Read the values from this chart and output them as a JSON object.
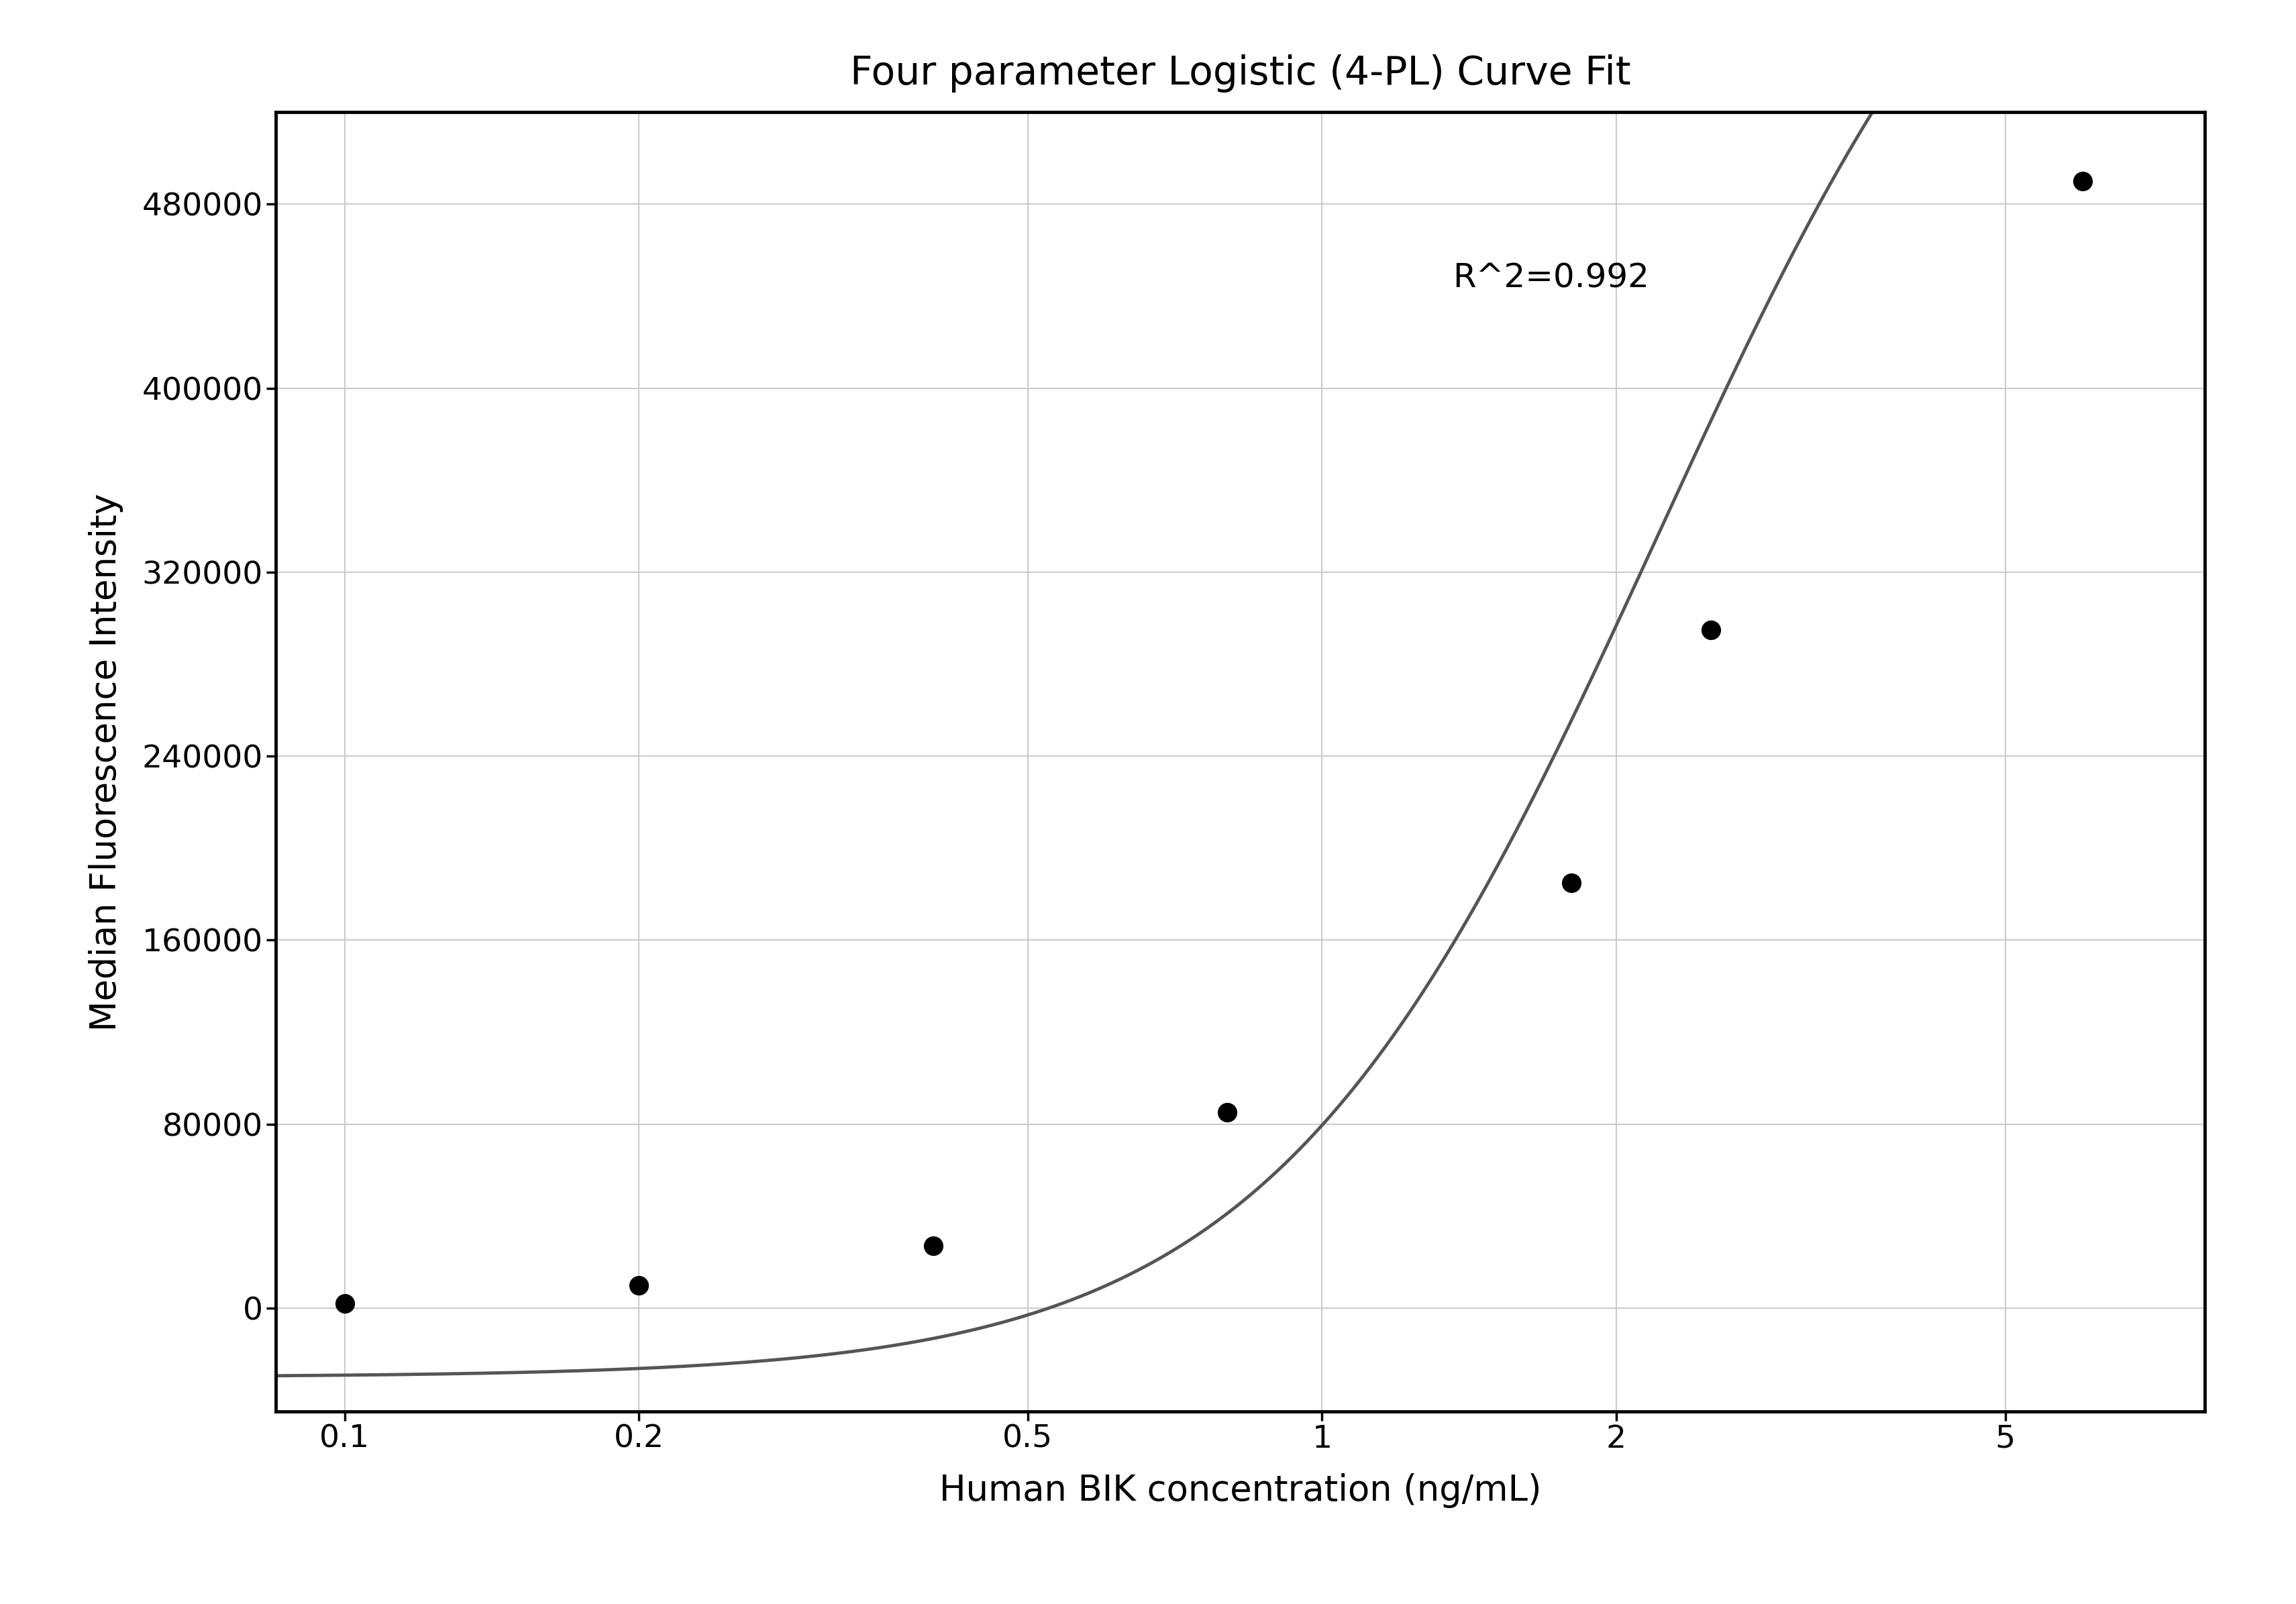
{
  "title": "Four parameter Logistic (4-PL) Curve Fit",
  "xlabel": "Human BIK concentration (ng/mL)",
  "ylabel": "Median Fluorescence Intensity",
  "r_squared": "R^2=0.992",
  "data_x": [
    0.1,
    0.2,
    0.4,
    0.8,
    1.8,
    2.5,
    6.0
  ],
  "data_y": [
    2000,
    10000,
    27000,
    85000,
    185000,
    295000,
    490000
  ],
  "xscale": "log",
  "xlim": [
    0.085,
    8.0
  ],
  "xticks": [
    0.1,
    0.2,
    0.5,
    1,
    2,
    5
  ],
  "xtick_labels": [
    "0.1",
    "0.2",
    "0.5",
    "1",
    "2",
    "5"
  ],
  "ylim": [
    -45000,
    520000
  ],
  "yticks": [
    0,
    80000,
    160000,
    240000,
    320000,
    400000,
    480000
  ],
  "ytick_labels": [
    "0",
    "80000",
    "160000",
    "240000",
    "320000",
    "400000",
    "480000"
  ],
  "4pl_A": -30000,
  "4pl_B": 2.2,
  "4pl_C": 2.2,
  "4pl_D": 700000,
  "grid_color": "#cccccc",
  "bg_color": "#ffffff",
  "spine_color": "#000000",
  "title_fontsize": 42,
  "label_fontsize": 38,
  "tick_fontsize": 34,
  "annotation_fontsize": 36,
  "dot_size": 400,
  "dot_color": "#000000",
  "line_color": "#555555",
  "line_width": 3.5
}
